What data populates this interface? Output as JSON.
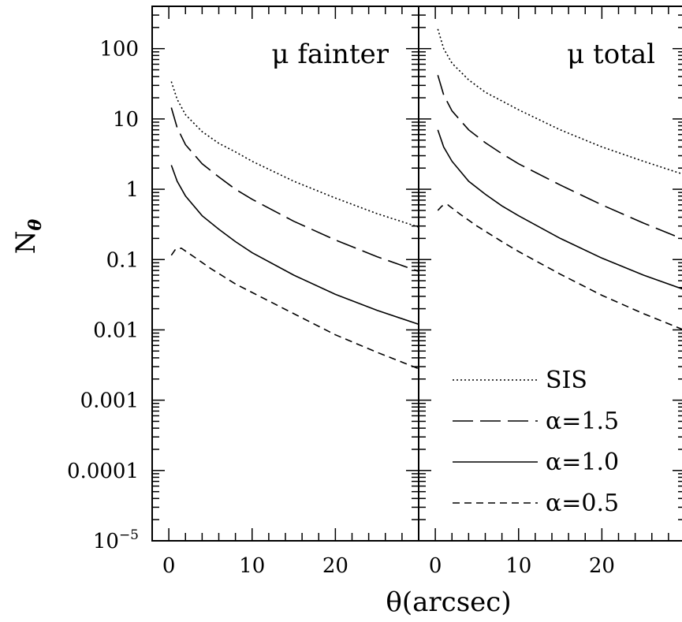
{
  "chart_data": {
    "type": "line",
    "ylabel": "N",
    "ylabel_sub": "θ",
    "xlabel": "θ(arcsec)",
    "y_scale": "log",
    "ylim": [
      1e-05,
      400
    ],
    "xlim": [
      -2,
      30
    ],
    "x_ticks": [
      0,
      10,
      20
    ],
    "y_ticks": [
      {
        "value": 100,
        "label": "100"
      },
      {
        "value": 10,
        "label": "10"
      },
      {
        "value": 1,
        "label": "1"
      },
      {
        "value": 0.1,
        "label": "0.1"
      },
      {
        "value": 0.01,
        "label": "0.01"
      },
      {
        "value": 0.001,
        "label": "0.001"
      },
      {
        "value": 0.0001,
        "label": "0.0001"
      }
    ],
    "y_bottom_label": {
      "base": "10",
      "exp": "−5"
    },
    "legend": {
      "placement": "lower-right",
      "entries": [
        {
          "label": "SIS",
          "style": "dotted"
        },
        {
          "label": "α=1.5",
          "style": "long-dash"
        },
        {
          "label": "α=1.0",
          "style": "solid"
        },
        {
          "label": "α=0.5",
          "style": "short-dash"
        }
      ]
    },
    "panels": [
      {
        "title": "μ fainter",
        "series": [
          {
            "style": "dotted",
            "x": [
              0.3,
              1,
              2,
              4,
              6,
              8,
              10,
              15,
              20,
              25,
              30
            ],
            "y": [
              34,
              19,
              11.5,
              6.6,
              4.5,
              3.4,
              2.5,
              1.3,
              0.75,
              0.45,
              0.29
            ]
          },
          {
            "style": "long-dash",
            "x": [
              0.3,
              1,
              2,
              4,
              6,
              8,
              10,
              15,
              20,
              25,
              30
            ],
            "y": [
              14.5,
              7.5,
              4.3,
              2.3,
              1.5,
              1.0,
              0.72,
              0.35,
              0.19,
              0.11,
              0.068
            ]
          },
          {
            "style": "solid",
            "x": [
              0.3,
              1,
              2,
              4,
              6,
              8,
              10,
              15,
              20,
              25,
              30
            ],
            "y": [
              2.2,
              1.3,
              0.8,
              0.42,
              0.27,
              0.18,
              0.125,
              0.06,
              0.032,
              0.019,
              0.012
            ]
          },
          {
            "style": "short-dash",
            "x": [
              0.3,
              0.8,
              1.5,
              3,
              5,
              8,
              10,
              15,
              20,
              25,
              30
            ],
            "y": [
              0.115,
              0.14,
              0.145,
              0.11,
              0.075,
              0.045,
              0.034,
              0.017,
              0.0085,
              0.0048,
              0.0028
            ]
          }
        ]
      },
      {
        "title": "μ total",
        "series": [
          {
            "style": "dotted",
            "x": [
              0.3,
              1,
              2,
              4,
              6,
              8,
              10,
              15,
              20,
              25,
              30
            ],
            "y": [
              190,
              100,
              62,
              36,
              24,
              18,
              13.5,
              7,
              4,
              2.5,
              1.6
            ]
          },
          {
            "style": "long-dash",
            "x": [
              0.3,
              1,
              2,
              4,
              6,
              8,
              10,
              15,
              20,
              25,
              30
            ],
            "y": [
              42,
              22,
              13,
              7,
              4.6,
              3.2,
              2.3,
              1.15,
              0.6,
              0.33,
              0.19
            ]
          },
          {
            "style": "solid",
            "x": [
              0.3,
              1,
              2,
              4,
              6,
              8,
              10,
              15,
              20,
              25,
              30
            ],
            "y": [
              7,
              4,
              2.5,
              1.3,
              0.85,
              0.58,
              0.42,
              0.2,
              0.105,
              0.06,
              0.037
            ]
          },
          {
            "style": "short-dash",
            "x": [
              0.3,
              0.8,
              1.5,
              3,
              5,
              8,
              10,
              15,
              20,
              25,
              30
            ],
            "y": [
              0.5,
              0.58,
              0.6,
              0.44,
              0.3,
              0.18,
              0.13,
              0.062,
              0.031,
              0.017,
              0.0098
            ]
          }
        ]
      }
    ]
  }
}
